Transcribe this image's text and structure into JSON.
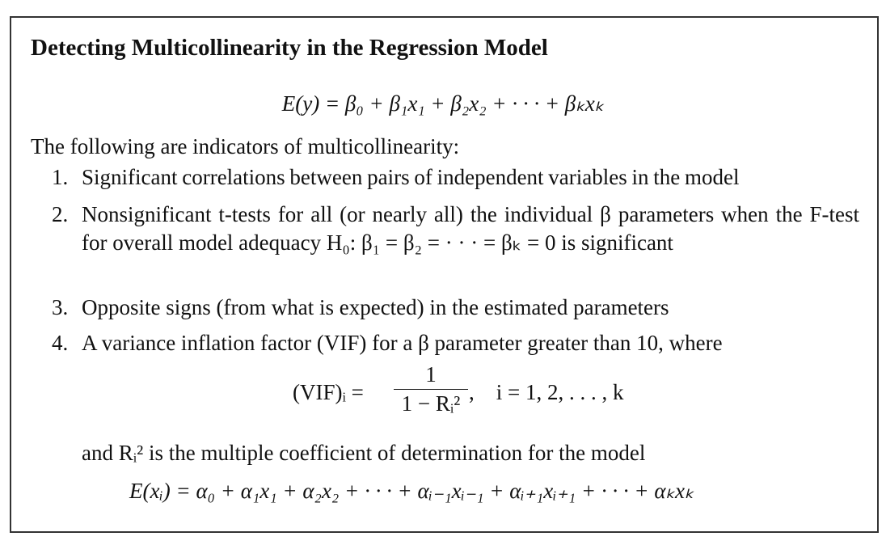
{
  "box": {
    "title": "Detecting Multicollinearity in the Regression Model",
    "model_equation": "E(y) = β₀ + β₁x₁ + β₂x₂ + · · · + βₖxₖ",
    "intro": "The following are indicators of multicollinearity:",
    "items": [
      {
        "number": "1.",
        "text": "Significant correlations between pairs of independent variables in the model"
      },
      {
        "number": "2.",
        "text": "Nonsignificant t-tests for all (or nearly all) the individual β parameters when the F-test for overall model adequacy H₀: β₁ = β₂ = · · · = βₖ = 0 is significant"
      },
      {
        "number": "3.",
        "text": "Opposite signs (from what is expected) in the estimated parameters"
      },
      {
        "number": "4.",
        "text": "A variance inflation factor (VIF) for a β parameter greater than 10, where"
      }
    ],
    "vif": {
      "lhs": "(VIF)ᵢ =",
      "numerator": "1",
      "denominator": "1 − Rᵢ²",
      "tail": ",    i = 1, 2, . . . , k"
    },
    "r2_note": "and Rᵢ² is the multiple coefficient of determination for the model",
    "auxiliary_equation": "E(xᵢ) = α₀ + α₁x₁ + α₂x₂ + · · · + αᵢ₋₁xᵢ₋₁ + αᵢ₊₁xᵢ₊₁ + · · · + αₖxₖ"
  }
}
